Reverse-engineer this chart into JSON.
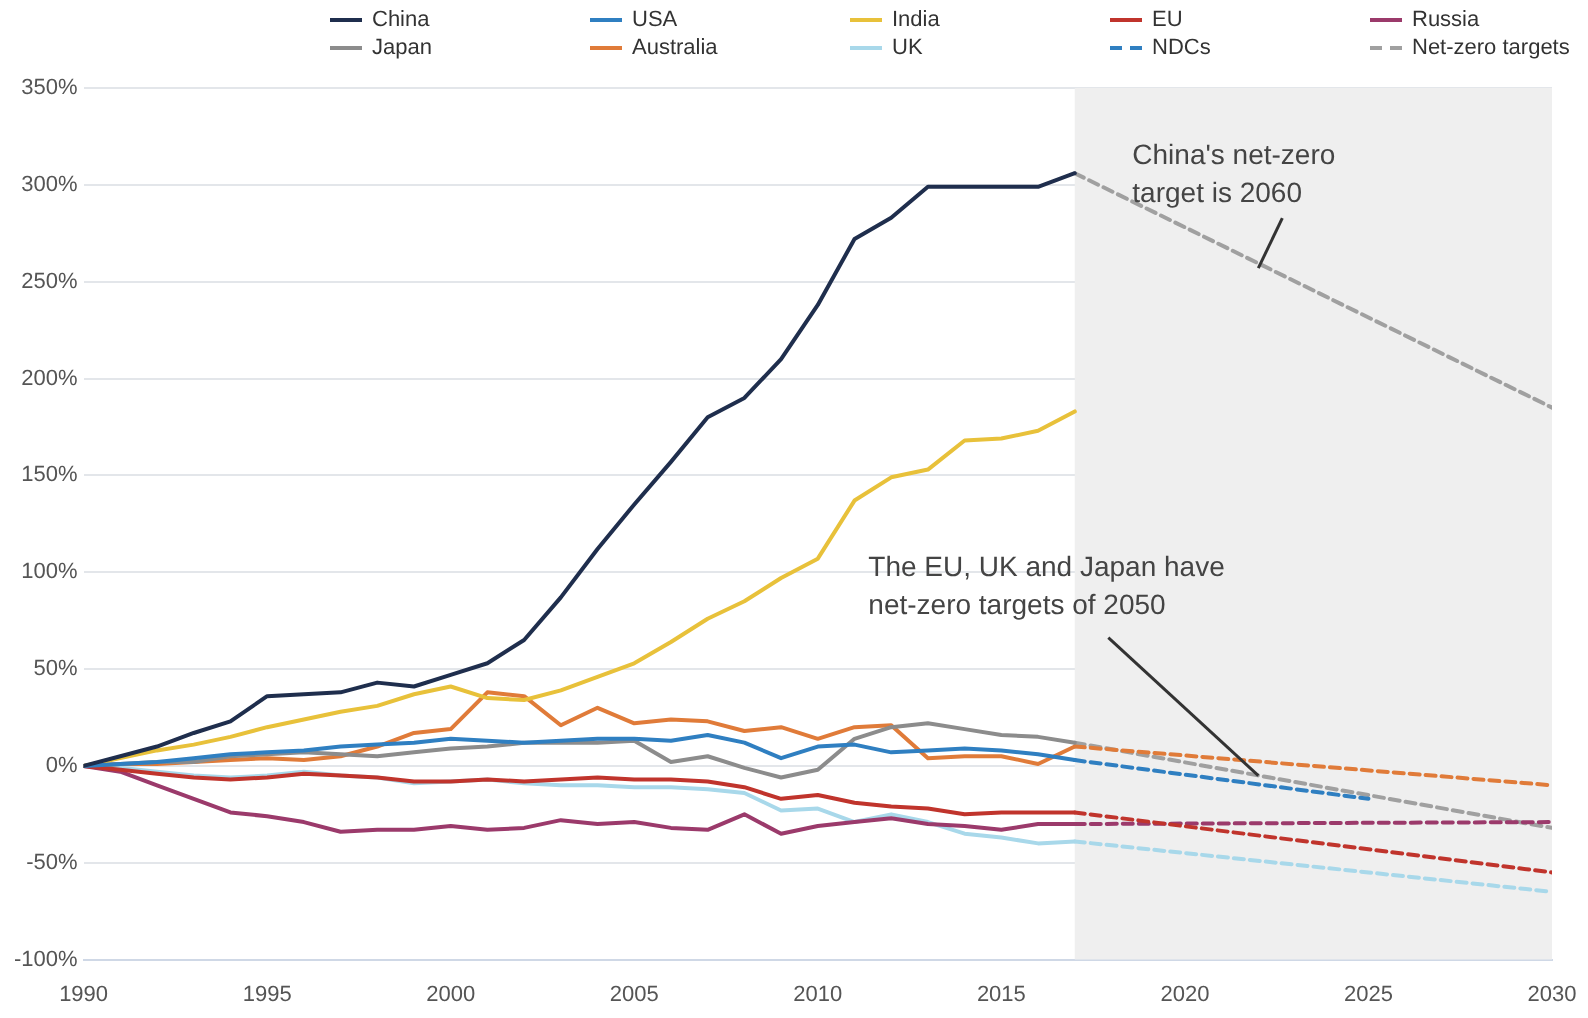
{
  "chart_data": {
    "type": "line",
    "x": [
      1990,
      1991,
      1992,
      1993,
      1994,
      1995,
      1996,
      1997,
      1998,
      1999,
      2000,
      2001,
      2002,
      2003,
      2004,
      2005,
      2006,
      2007,
      2008,
      2009,
      2010,
      2011,
      2012,
      2013,
      2014,
      2015,
      2016,
      2017
    ],
    "series": [
      {
        "name": "China",
        "color": "#1f2e4d",
        "values": [
          0,
          5,
          10,
          17,
          23,
          36,
          37,
          38,
          43,
          41,
          47,
          53,
          65,
          87,
          112,
          135,
          157,
          180,
          190,
          210,
          238,
          272,
          283,
          299,
          299,
          299,
          299,
          306
        ]
      },
      {
        "name": "USA",
        "color": "#2f7fc1",
        "values": [
          0,
          1,
          2,
          4,
          6,
          7,
          8,
          10,
          11,
          12,
          14,
          13,
          12,
          13,
          14,
          14,
          13,
          16,
          12,
          4,
          10,
          11,
          7,
          8,
          9,
          8,
          6,
          3
        ]
      },
      {
        "name": "India",
        "color": "#e8c13a",
        "values": [
          0,
          4,
          8,
          11,
          15,
          20,
          24,
          28,
          31,
          37,
          41,
          35,
          34,
          39,
          46,
          53,
          64,
          76,
          85,
          97,
          107,
          137,
          149,
          153,
          168,
          169,
          173,
          183
        ]
      },
      {
        "name": "EU",
        "color": "#c0342c",
        "values": [
          0,
          -2,
          -4,
          -6,
          -7,
          -6,
          -4,
          -5,
          -6,
          -8,
          -8,
          -7,
          -8,
          -7,
          -6,
          -7,
          -7,
          -8,
          -11,
          -17,
          -15,
          -19,
          -21,
          -22,
          -25,
          -24,
          -24,
          -24
        ]
      },
      {
        "name": "Russia",
        "color": "#9b3a6b",
        "values": [
          0,
          -3,
          -10,
          -17,
          -24,
          -26,
          -29,
          -34,
          -33,
          -33,
          -31,
          -33,
          -32,
          -28,
          -30,
          -29,
          -32,
          -33,
          -25,
          -35,
          -31,
          -29,
          -27,
          -30,
          -31,
          -33,
          -30,
          -30
        ]
      },
      {
        "name": "Japan",
        "color": "#8c8c8c",
        "values": [
          0,
          1,
          2,
          2,
          5,
          6,
          7,
          6,
          5,
          7,
          9,
          10,
          12,
          12,
          12,
          13,
          2,
          5,
          -1,
          -6,
          -2,
          14,
          20,
          22,
          19,
          16,
          15,
          12
        ]
      },
      {
        "name": "Australia",
        "color": "#e07b39",
        "values": [
          0,
          1,
          1,
          2,
          3,
          4,
          3,
          5,
          10,
          17,
          19,
          38,
          36,
          21,
          30,
          22,
          24,
          23,
          18,
          20,
          14,
          20,
          21,
          4,
          5,
          5,
          1,
          10
        ]
      },
      {
        "name": "UK",
        "color": "#a8d8ea",
        "values": [
          0,
          -1,
          -3,
          -5,
          -6,
          -5,
          -3,
          -5,
          -6,
          -9,
          -8,
          -7,
          -9,
          -10,
          -10,
          -11,
          -11,
          -12,
          -14,
          -23,
          -22,
          -29,
          -25,
          -29,
          -35,
          -37,
          -40,
          -39
        ]
      },
      {
        "name": "NDCs",
        "color": "#2f7fc1",
        "line_style": "dashed",
        "x": [
          2017,
          2025
        ],
        "values": [
          3,
          -17
        ]
      },
      {
        "name": "Net-zero targets",
        "color": "#a0a0a0",
        "line_style": "dashed",
        "x": [
          2017,
          2030
        ],
        "values": [
          306,
          185
        ]
      },
      {
        "color": "#e07b39",
        "line_style": "dashed",
        "x": [
          2017,
          2030
        ],
        "values": [
          10,
          -10
        ]
      },
      {
        "color": "#c0342c",
        "line_style": "dashed",
        "x": [
          2017,
          2030
        ],
        "values": [
          -24,
          -55
        ]
      },
      {
        "color": "#9b3a6b",
        "line_style": "dashed",
        "x": [
          2017,
          2030
        ],
        "values": [
          -30,
          -29
        ]
      },
      {
        "color": "#a8d8ea",
        "line_style": "dashed",
        "x": [
          2017,
          2030
        ],
        "values": [
          -39,
          -65
        ]
      },
      {
        "color": "#a0a0a0",
        "line_style": "dashed",
        "x": [
          2017,
          2030
        ],
        "values": [
          12,
          -32
        ]
      }
    ],
    "xlim": [
      1990,
      2030
    ],
    "xticks": [
      1990,
      1995,
      2000,
      2005,
      2010,
      2015,
      2020,
      2025,
      2030
    ],
    "ylim": [
      -100,
      350
    ],
    "yticks": [
      {
        "value": -100,
        "label": "-100%"
      },
      {
        "value": -50,
        "label": "-50%"
      },
      {
        "value": 0,
        "label": "0%"
      },
      {
        "value": 50,
        "label": "50%"
      },
      {
        "value": 100,
        "label": "100%"
      },
      {
        "value": 150,
        "label": "150%"
      },
      {
        "value": 200,
        "label": "200%"
      },
      {
        "value": 250,
        "label": "250%"
      },
      {
        "value": 300,
        "label": "300%"
      },
      {
        "value": 350,
        "label": "350%"
      }
    ],
    "bands": [
      {
        "axis": "x",
        "from": 2017,
        "to": 2030,
        "color": "#efefef"
      }
    ],
    "annotations": [
      {
        "text": "China's net-zero target is 2060",
        "x": 2022,
        "y": 257
      },
      {
        "text": "The EU, UK and Japan have net-zero targets of 2050",
        "x": 2022,
        "y": -5
      }
    ],
    "grid": "y",
    "legend": "top",
    "marker": "none",
    "line_style": "solid"
  }
}
